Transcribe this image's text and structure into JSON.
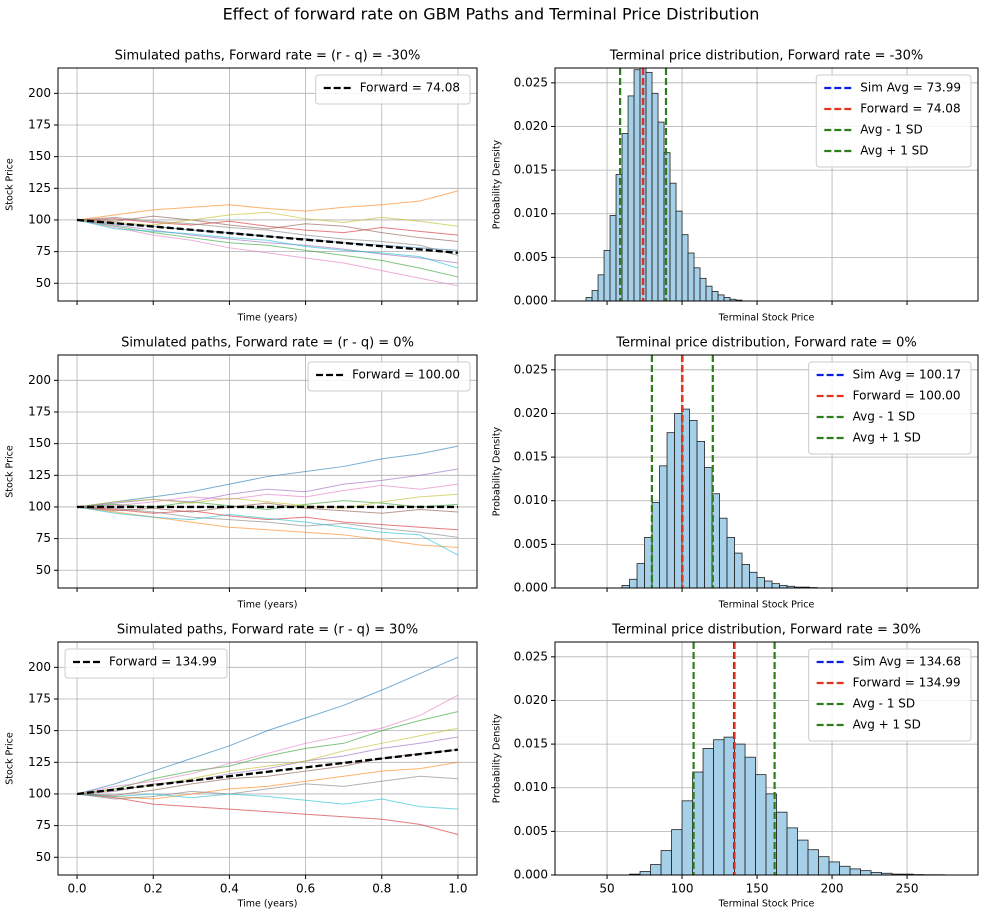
{
  "title": "Effect of forward rate on GBM Paths and Terminal Price Distribution",
  "chart_data": [
    {
      "type": "line",
      "title": "Simulated paths, Forward rate = (r - q) = -30%",
      "x_label": "Time (years)",
      "y_label": "Stock Price",
      "xlim": [
        -0.05,
        1.05
      ],
      "ylim": [
        36,
        220
      ],
      "xticks": [
        0,
        0.2,
        0.4,
        0.6,
        0.8,
        1
      ],
      "yticks": [
        50,
        75,
        100,
        125,
        150,
        175,
        200
      ],
      "grid": true,
      "legend": "upper right",
      "x": [
        0,
        0.1,
        0.2,
        0.3,
        0.4,
        0.5,
        0.6,
        0.7,
        0.8,
        0.9,
        1
      ],
      "series": [
        {
          "color": "#1f77b4",
          "values": [
            100,
            97,
            95,
            92,
            90,
            87,
            85,
            82,
            80,
            78,
            76
          ]
        },
        {
          "color": "#ff7f0e",
          "values": [
            100,
            104,
            108,
            110,
            112,
            109,
            107,
            110,
            112,
            115,
            123
          ]
        },
        {
          "color": "#2ca02c",
          "values": [
            100,
            95,
            90,
            86,
            82,
            80,
            76,
            72,
            68,
            62,
            55
          ]
        },
        {
          "color": "#d62728",
          "values": [
            100,
            101,
            98,
            96,
            99,
            95,
            92,
            90,
            94,
            91,
            88
          ]
        },
        {
          "color": "#9467bd",
          "values": [
            100,
            96,
            92,
            88,
            85,
            82,
            80,
            77,
            73,
            70,
            66
          ]
        },
        {
          "color": "#8c564b",
          "values": [
            100,
            99,
            103,
            100,
            96,
            93,
            97,
            95,
            90,
            86,
            83
          ]
        },
        {
          "color": "#e377c2",
          "values": [
            100,
            94,
            88,
            84,
            78,
            74,
            70,
            66,
            60,
            54,
            48
          ]
        },
        {
          "color": "#7f7f7f",
          "values": [
            100,
            102,
            99,
            97,
            94,
            92,
            88,
            85,
            83,
            80,
            72
          ]
        },
        {
          "color": "#bcbd22",
          "values": [
            100,
            98,
            96,
            100,
            104,
            106,
            101,
            98,
            102,
            99,
            95
          ]
        },
        {
          "color": "#17becf",
          "values": [
            100,
            93,
            91,
            89,
            86,
            84,
            79,
            76,
            74,
            71,
            62
          ]
        },
        {
          "name": "Forward = 74.08",
          "color": "#000000",
          "dashed": true,
          "x": [
            0,
            1
          ],
          "values": [
            100,
            74.08
          ]
        }
      ]
    },
    {
      "type": "histogram",
      "title": "Terminal price distribution, Forward rate = -30%",
      "x_label": "Terminal Stock Price",
      "y_label": "Probability Density",
      "xlim": [
        15.3,
        297.3
      ],
      "ylim": [
        0,
        0.0267
      ],
      "xticks": [
        50,
        100,
        150,
        200,
        250
      ],
      "yticks": [
        {
          "value": 0,
          "label": "0.000"
        },
        {
          "value": 0.005,
          "label": "0.005"
        },
        {
          "value": 0.01,
          "label": "0.010"
        },
        {
          "value": 0.015,
          "label": "0.015"
        },
        {
          "value": 0.02,
          "label": "0.020"
        },
        {
          "value": 0.025,
          "label": "0.025"
        }
      ],
      "grid": true,
      "legend": "upper right",
      "color": "#a6d0e8",
      "bins": [
        36,
        40,
        44,
        48,
        52,
        56,
        60,
        64,
        68,
        72,
        76,
        80,
        84,
        88,
        92,
        96,
        100,
        104,
        108,
        112,
        116,
        120,
        124,
        128,
        132,
        136,
        140
      ],
      "values": [
        0.0004,
        0.0012,
        0.003,
        0.0058,
        0.0098,
        0.0145,
        0.0192,
        0.0235,
        0.0265,
        0.0272,
        0.0262,
        0.0238,
        0.0205,
        0.017,
        0.0135,
        0.0103,
        0.0076,
        0.0055,
        0.0038,
        0.0026,
        0.0017,
        0.0011,
        0.0007,
        0.0004,
        0.0002,
        0.0001
      ],
      "vlines": [
        {
          "name": "Sim Avg = 73.99",
          "value": 73.99,
          "color": "#0a1fe0"
        },
        {
          "name": "Forward = 74.08",
          "value": 74.08,
          "color": "#e0361f"
        },
        {
          "name": "Avg - 1 SD",
          "value": 58.7,
          "color": "#2e7d1c"
        },
        {
          "name": "Avg + 1 SD",
          "value": 89.3,
          "color": "#2e7d1c"
        }
      ]
    },
    {
      "type": "line",
      "title": "Simulated paths, Forward rate = (r - q) = 0%",
      "x_label": "Time (years)",
      "y_label": "Stock Price",
      "xlim": [
        -0.05,
        1.05
      ],
      "ylim": [
        36,
        220
      ],
      "xticks": [
        0,
        0.2,
        0.4,
        0.6,
        0.8,
        1
      ],
      "yticks": [
        50,
        75,
        100,
        125,
        150,
        175,
        200
      ],
      "grid": true,
      "legend": "upper right",
      "x": [
        0,
        0.1,
        0.2,
        0.3,
        0.4,
        0.5,
        0.6,
        0.7,
        0.8,
        0.9,
        1
      ],
      "series": [
        {
          "color": "#1f77b4",
          "values": [
            100,
            104,
            108,
            112,
            118,
            124,
            128,
            132,
            138,
            142,
            148
          ]
        },
        {
          "color": "#ff7f0e",
          "values": [
            100,
            96,
            92,
            88,
            84,
            82,
            80,
            78,
            74,
            70,
            68
          ]
        },
        {
          "color": "#2ca02c",
          "values": [
            100,
            102,
            100,
            104,
            101,
            98,
            102,
            105,
            103,
            100,
            102
          ]
        },
        {
          "color": "#d62728",
          "values": [
            100,
            98,
            95,
            97,
            93,
            90,
            92,
            88,
            86,
            84,
            82
          ]
        },
        {
          "color": "#9467bd",
          "values": [
            100,
            103,
            106,
            104,
            110,
            114,
            112,
            118,
            121,
            125,
            130
          ]
        },
        {
          "color": "#8c564b",
          "values": [
            100,
            97,
            99,
            96,
            100,
            103,
            99,
            97,
            95,
            98,
            96
          ]
        },
        {
          "color": "#e377c2",
          "values": [
            100,
            101,
            104,
            108,
            106,
            110,
            108,
            113,
            117,
            114,
            118
          ]
        },
        {
          "color": "#7f7f7f",
          "values": [
            100,
            99,
            96,
            92,
            90,
            88,
            85,
            87,
            83,
            80,
            76
          ]
        },
        {
          "color": "#bcbd22",
          "values": [
            100,
            104,
            106,
            103,
            107,
            104,
            101,
            99,
            104,
            108,
            110
          ]
        },
        {
          "color": "#17becf",
          "values": [
            100,
            95,
            92,
            90,
            94,
            91,
            88,
            84,
            80,
            78,
            62
          ]
        },
        {
          "name": "Forward = 100.00",
          "color": "#000000",
          "dashed": true,
          "x": [
            0,
            1
          ],
          "values": [
            100,
            100
          ]
        }
      ]
    },
    {
      "type": "histogram",
      "title": "Terminal price distribution, Forward rate = 0%",
      "x_label": "Terminal Stock Price",
      "y_label": "Probability Density",
      "xlim": [
        15.3,
        297.3
      ],
      "ylim": [
        0,
        0.0267
      ],
      "xticks": [
        50,
        100,
        150,
        200,
        250
      ],
      "yticks": [
        {
          "value": 0,
          "label": "0.000"
        },
        {
          "value": 0.005,
          "label": "0.005"
        },
        {
          "value": 0.01,
          "label": "0.010"
        },
        {
          "value": 0.015,
          "label": "0.015"
        },
        {
          "value": 0.02,
          "label": "0.020"
        },
        {
          "value": 0.025,
          "label": "0.025"
        }
      ],
      "grid": true,
      "legend": "upper right",
      "color": "#a6d0e8",
      "bins": [
        60,
        65,
        70,
        75,
        80,
        85,
        90,
        95,
        100,
        105,
        110,
        115,
        120,
        125,
        130,
        135,
        140,
        145,
        150,
        155,
        160,
        165,
        170,
        175,
        180,
        185,
        190
      ],
      "values": [
        0.0003,
        0.001,
        0.0028,
        0.0058,
        0.0098,
        0.014,
        0.0178,
        0.02,
        0.0205,
        0.0192,
        0.0168,
        0.0138,
        0.0108,
        0.008,
        0.0058,
        0.004,
        0.0027,
        0.0018,
        0.0012,
        0.0008,
        0.0005,
        0.0003,
        0.0002,
        0.0001,
        0.0001,
        5e-05
      ],
      "vlines": [
        {
          "name": "Sim Avg = 100.17",
          "value": 100.17,
          "color": "#0a1fe0"
        },
        {
          "name": "Forward = 100.00",
          "value": 100,
          "color": "#e0361f"
        },
        {
          "name": "Avg - 1 SD",
          "value": 79.9,
          "color": "#2e7d1c"
        },
        {
          "name": "Avg + 1 SD",
          "value": 120.5,
          "color": "#2e7d1c"
        }
      ]
    },
    {
      "type": "line",
      "title": "Simulated paths, Forward rate = (r - q) = 30%",
      "x_label": "Time (years)",
      "y_label": "Stock Price",
      "xlim": [
        -0.05,
        1.05
      ],
      "ylim": [
        36,
        220
      ],
      "xticks": [
        {
          "value": 0,
          "label": "0.0"
        },
        {
          "value": 0.2,
          "label": "0.2"
        },
        {
          "value": 0.4,
          "label": "0.4"
        },
        {
          "value": 0.6,
          "label": "0.6"
        },
        {
          "value": 0.8,
          "label": "0.8"
        },
        {
          "value": 1,
          "label": "1.0"
        }
      ],
      "yticks": [
        50,
        75,
        100,
        125,
        150,
        175,
        200
      ],
      "grid": true,
      "legend": "upper left",
      "x": [
        0,
        0.1,
        0.2,
        0.3,
        0.4,
        0.5,
        0.6,
        0.7,
        0.8,
        0.9,
        1
      ],
      "series": [
        {
          "color": "#1f77b4",
          "values": [
            100,
            108,
            118,
            128,
            138,
            150,
            160,
            170,
            182,
            195,
            208
          ]
        },
        {
          "color": "#ff7f0e",
          "values": [
            100,
            98,
            96,
            100,
            104,
            106,
            110,
            114,
            118,
            120,
            125
          ]
        },
        {
          "color": "#2ca02c",
          "values": [
            100,
            104,
            112,
            118,
            122,
            130,
            136,
            140,
            150,
            158,
            165
          ]
        },
        {
          "color": "#d62728",
          "values": [
            100,
            97,
            92,
            90,
            88,
            86,
            84,
            82,
            80,
            76,
            68
          ]
        },
        {
          "color": "#9467bd",
          "values": [
            100,
            102,
            108,
            110,
            116,
            120,
            126,
            130,
            136,
            140,
            145
          ]
        },
        {
          "color": "#8c564b",
          "values": [
            100,
            99,
            103,
            108,
            112,
            114,
            118,
            122,
            128,
            132,
            135
          ]
        },
        {
          "color": "#e377c2",
          "values": [
            100,
            106,
            110,
            116,
            124,
            132,
            140,
            146,
            152,
            162,
            178
          ]
        },
        {
          "color": "#7f7f7f",
          "values": [
            100,
            96,
            98,
            102,
            100,
            104,
            108,
            106,
            110,
            114,
            112
          ]
        },
        {
          "color": "#bcbd22",
          "values": [
            100,
            103,
            107,
            112,
            118,
            122,
            126,
            134,
            140,
            146,
            152
          ]
        },
        {
          "color": "#17becf",
          "values": [
            100,
            98,
            100,
            97,
            100,
            98,
            95,
            92,
            96,
            90,
            88
          ]
        },
        {
          "name": "Forward = 134.99",
          "color": "#000000",
          "dashed": true,
          "x": [
            0,
            1
          ],
          "values": [
            100,
            134.99
          ]
        }
      ]
    },
    {
      "type": "histogram",
      "title": "Terminal price distribution, Forward rate = 30%",
      "x_label": "Terminal Stock Price",
      "y_label": "Probability Density",
      "xlim": [
        15.3,
        297.3
      ],
      "ylim": [
        0,
        0.0267
      ],
      "xticks": [
        50,
        100,
        150,
        200,
        250
      ],
      "yticks": [
        {
          "value": 0,
          "label": "0.000"
        },
        {
          "value": 0.005,
          "label": "0.005"
        },
        {
          "value": 0.01,
          "label": "0.010"
        },
        {
          "value": 0.015,
          "label": "0.015"
        },
        {
          "value": 0.02,
          "label": "0.020"
        },
        {
          "value": 0.025,
          "label": "0.025"
        }
      ],
      "grid": true,
      "legend": "upper right",
      "color": "#a6d0e8",
      "bins": [
        65,
        72,
        79,
        86,
        93,
        100,
        107,
        114,
        121,
        128,
        135,
        142,
        149,
        156,
        163,
        170,
        177,
        184,
        191,
        198,
        205,
        212,
        219,
        226,
        233,
        240,
        247,
        254,
        261,
        268,
        275
      ],
      "values": [
        0.0001,
        0.0004,
        0.0012,
        0.0028,
        0.0052,
        0.0085,
        0.0118,
        0.0145,
        0.0155,
        0.0158,
        0.015,
        0.0135,
        0.0115,
        0.0093,
        0.0072,
        0.0054,
        0.004,
        0.0029,
        0.0021,
        0.0015,
        0.001,
        0.0007,
        0.0005,
        0.0003,
        0.0002,
        0.0001,
        0.0001,
        5e-05,
        3e-05,
        3e-05
      ],
      "vlines": [
        {
          "name": "Sim Avg = 134.68",
          "value": 134.68,
          "color": "#0a1fe0"
        },
        {
          "name": "Forward = 134.99",
          "value": 134.99,
          "color": "#e0361f"
        },
        {
          "name": "Avg - 1 SD",
          "value": 107.7,
          "color": "#2e7d1c"
        },
        {
          "name": "Avg + 1 SD",
          "value": 161.7,
          "color": "#2e7d1c"
        }
      ]
    }
  ]
}
